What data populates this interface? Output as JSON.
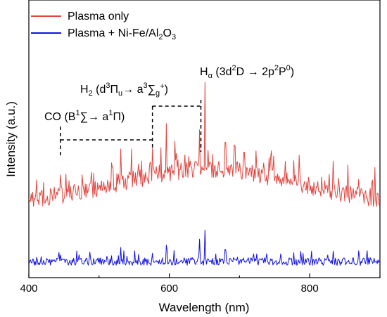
{
  "chart_data": {
    "type": "line",
    "xlabel": "Wavelength (nm)",
    "ylabel": "Intensity (a.u.)",
    "xlim": [
      400,
      900
    ],
    "x_ticks": [
      "400",
      "600",
      "800"
    ],
    "y_ticks_labeled": false,
    "grid": false,
    "legend_position": "top-left",
    "series": [
      {
        "name": "Plasma only",
        "color": "#e0453f",
        "baseline_shape": "broad hump peaking near 650 nm",
        "peaks_nm": [
          445,
          518,
          531,
          576,
          596,
          643,
          651,
          680,
          777,
          833,
          870
        ]
      },
      {
        "name": "Plasma + Ni-Fe/Al2O3",
        "color": "#1010e6",
        "baseline_shape": "flat",
        "peaks_nm": [
          445,
          518,
          531,
          576,
          596,
          643,
          651,
          680,
          777,
          833,
          870
        ]
      }
    ],
    "annotations": [
      {
        "id": "co",
        "label": {
          "main": "CO (B",
          "sup1": "1",
          "mid": "∑→ a",
          "sup2": "1",
          "end": "Π)"
        },
        "range_nm": [
          445,
          576
        ]
      },
      {
        "id": "h2",
        "label": {
          "main": "H",
          "sub1": "2",
          "p1": " (d",
          "sup1": "3",
          "p2": "Π",
          "sub2": "u",
          "p3": "→ a",
          "sup2": "3",
          "p4": "∑",
          "sub3": "g",
          "sup3": "+",
          "p5": ")"
        },
        "range_nm": [
          576,
          645
        ]
      },
      {
        "id": "halpha",
        "label": {
          "main": "H",
          "sub1": "α",
          "p1": " (3d",
          "sup1": "2",
          "p2": "D → 2p",
          "sup2": "2",
          "p3": "P",
          "sup3": "0",
          "p4": ")"
        },
        "peak_nm": 651
      }
    ]
  },
  "legend": {
    "items": [
      {
        "label": "Plasma only",
        "color": "#e0453f"
      },
      {
        "label_main": "Plasma + Ni-Fe/Al",
        "sub1": "2",
        "mid": "O",
        "sub2": "3",
        "color": "#1010e6"
      }
    ]
  }
}
